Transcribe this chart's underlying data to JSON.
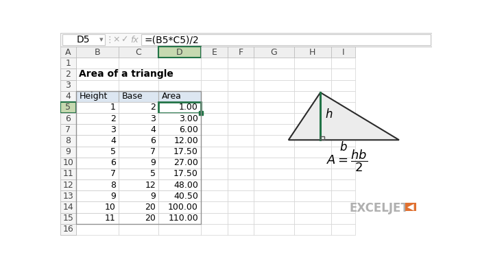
{
  "title": "Area of a triangle",
  "formula_bar_cell": "D5",
  "formula_bar_formula": "=(B5*C5)/2",
  "col_headers": [
    "A",
    "B",
    "C",
    "D",
    "E",
    "F",
    "G",
    "H",
    "I"
  ],
  "table_data": [
    [
      1,
      2,
      "1.00"
    ],
    [
      2,
      3,
      "3.00"
    ],
    [
      3,
      4,
      "6.00"
    ],
    [
      4,
      6,
      "12.00"
    ],
    [
      5,
      7,
      "17.50"
    ],
    [
      6,
      9,
      "27.00"
    ],
    [
      7,
      5,
      "17.50"
    ],
    [
      8,
      12,
      "48.00"
    ],
    [
      9,
      9,
      "40.50"
    ],
    [
      10,
      20,
      "100.00"
    ],
    [
      11,
      20,
      "110.00"
    ]
  ],
  "bg_color": "#ffffff",
  "col_header_bg": "#efefef",
  "col_header_active_bg": "#c6d9b0",
  "col_header_active_border": "#217346",
  "row_header_bg": "#f5f5f5",
  "row_header_active_bg": "#c6d9b0",
  "table_header_bg": "#dce6f1",
  "grid_color": "#d3d3d3",
  "cell_selected_border": "#217346",
  "height_line_color": "#217346",
  "exceljet_text_color": "#c0c0c0",
  "exceljet_orange": "#e07030",
  "formula_bar_bg": "#f8f8f8",
  "formula_bar_border": "#c8c8c8"
}
